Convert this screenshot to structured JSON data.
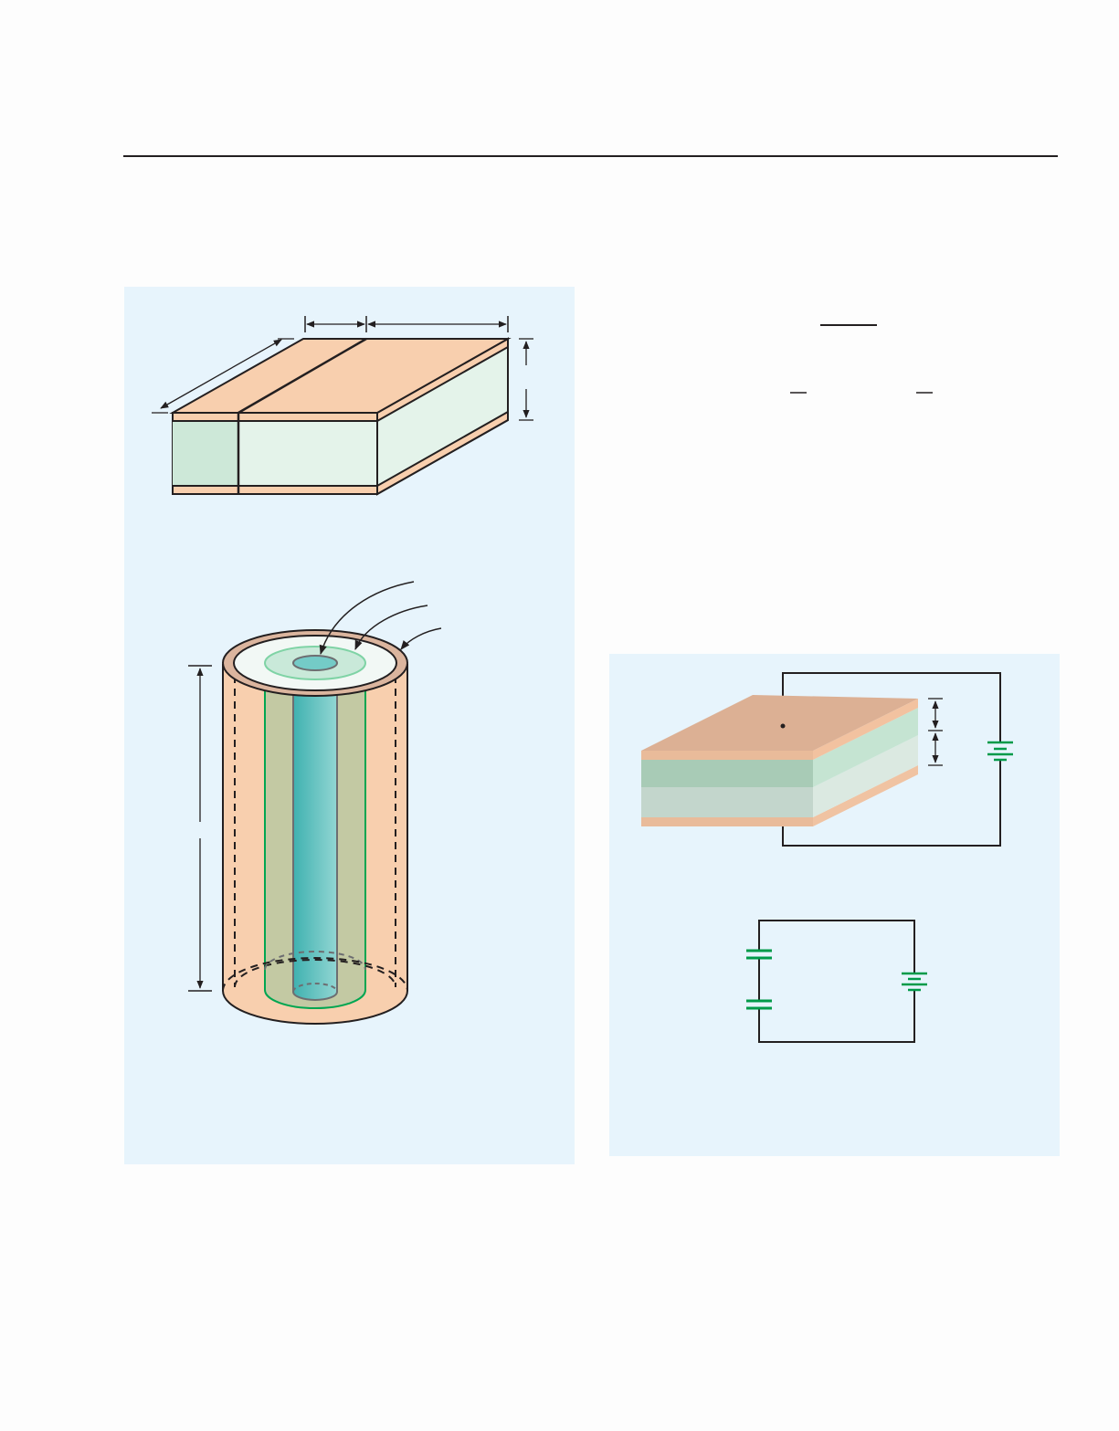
{
  "colors": {
    "page_background": "#fdfdfd",
    "panel_background": "#e7f4fc",
    "copper_plate": "#f8cfae",
    "copper_plate_dark": "#e6a886",
    "dielectric_green": "#cfe9dc",
    "dielectric_light": "#e4f3ea",
    "inner_conductor": "#6fc9c6",
    "dielectric_shell": "#c3c9a3",
    "outline": "#231f20",
    "circuit_green": "#009a49"
  },
  "icons": {
    "battery_symbol": "battery-icon",
    "capacitor_symbol": "capacitor-icon"
  }
}
